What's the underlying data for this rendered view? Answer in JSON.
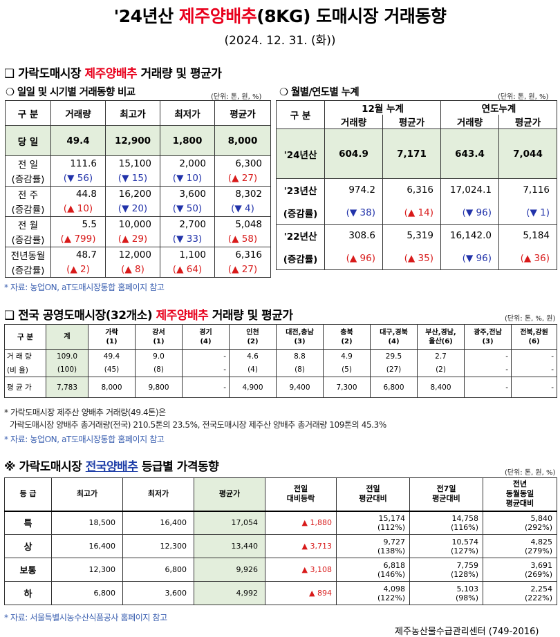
{
  "title": {
    "pre": "'24년산 ",
    "highlight": "제주양배추",
    "post": "(8KG) 도매시장 거래동향"
  },
  "date": "(2024. 12. 31. (화))",
  "sec1": {
    "marker": "❑ ",
    "pre": "가락도매시장 ",
    "highlight": "제주양배추",
    "post": " 거래량 및 평균가"
  },
  "daily": {
    "subtitle": "❍ 일일 및 시기별 거래동향 비교",
    "unit": "(단위: 톤, 원, %)",
    "headers": [
      "구 분",
      "거래량",
      "최고가",
      "최저가",
      "평균가"
    ],
    "today": {
      "label": "당 일",
      "values": [
        "49.4",
        "12,900",
        "1,800",
        "8,000"
      ]
    },
    "rows": [
      {
        "label": "전 일",
        "sub": "(증감률)",
        "values": [
          "111.6",
          "15,100",
          "2,000",
          "6,300"
        ],
        "changes": [
          "(▼ 56)",
          "(▼ 15)",
          "(▼ 10)",
          "(▲ 27)"
        ],
        "dirs": [
          "dn",
          "dn",
          "dn",
          "up"
        ]
      },
      {
        "label": "전 주",
        "sub": "(증감률)",
        "values": [
          "44.8",
          "16,200",
          "3,600",
          "8,302"
        ],
        "changes": [
          "(▲ 10)",
          "(▼ 20)",
          "(▼ 50)",
          "(▼ 4)"
        ],
        "dirs": [
          "up",
          "dn",
          "dn",
          "dn"
        ]
      },
      {
        "label": "전 월",
        "sub": "(증감률)",
        "values": [
          "5.5",
          "10,000",
          "2,700",
          "5,048"
        ],
        "changes": [
          "(▲ 799)",
          "(▲ 29)",
          "(▼ 33)",
          "(▲ 58)"
        ],
        "dirs": [
          "up",
          "up",
          "dn",
          "up"
        ]
      },
      {
        "label": "전년동월",
        "sub": "(증감률)",
        "values": [
          "48.7",
          "12,000",
          "1,100",
          "6,316"
        ],
        "changes": [
          "(▲ 2)",
          "(▲ 8)",
          "(▲ 64)",
          "(▲ 27)"
        ],
        "dirs": [
          "up",
          "up",
          "up",
          "up"
        ]
      }
    ]
  },
  "monthly": {
    "subtitle": "❍ 월별/연도별 누계",
    "unit": "(단위: 톤, 원, %)",
    "header_label": "구 분",
    "group1": "12월 누계",
    "group2": "연도누계",
    "cols": [
      "거래량",
      "평균가",
      "거래량",
      "평균가"
    ],
    "current": {
      "label": "'24년산",
      "values": [
        "604.9",
        "7,171",
        "643.4",
        "7,044"
      ]
    },
    "rows": [
      {
        "label": "'23년산",
        "sub": "(증감률)",
        "values": [
          "974.2",
          "6,316",
          "17,024.1",
          "7,116"
        ],
        "changes": [
          "(▼ 38)",
          "(▲ 14)",
          "(▼ 96)",
          "(▼ 1)"
        ],
        "dirs": [
          "dn",
          "up",
          "dn",
          "dn"
        ]
      },
      {
        "label": "'22년산",
        "sub": "(증감률)",
        "values": [
          "308.6",
          "5,319",
          "16,142.0",
          "5,184"
        ],
        "changes": [
          "(▲ 96)",
          "(▲ 35)",
          "(▼ 96)",
          "(▲ 36)"
        ],
        "dirs": [
          "up",
          "up",
          "dn",
          "up"
        ]
      }
    ]
  },
  "note1": "* 자료: 농업ON, aT도매시장통합 홈페이지 참고",
  "sec2": {
    "marker": "❑ ",
    "pre": "전국 공영도매시장(32개소) ",
    "highlight": "제주양배추",
    "post": " 거래량 및 평균가",
    "unit": "(단위: 톤, %, 원)"
  },
  "national": {
    "header_label": "구 분",
    "cols": [
      {
        "name": "계",
        "sub": ""
      },
      {
        "name": "가락",
        "sub": "(1)"
      },
      {
        "name": "강서",
        "sub": "(1)"
      },
      {
        "name": "경기",
        "sub": "(4)"
      },
      {
        "name": "인천",
        "sub": "(2)"
      },
      {
        "name": "대전,충남",
        "sub": "(3)"
      },
      {
        "name": "충북",
        "sub": "(2)"
      },
      {
        "name": "대구,경북",
        "sub": "(4)"
      },
      {
        "name": "부산,경남,",
        "sub": "울산(6)"
      },
      {
        "name": "광주,전남",
        "sub": "(3)"
      },
      {
        "name": "전북,강원",
        "sub": "(6)"
      }
    ],
    "volume_label": "거 래 량",
    "volume": [
      "109.0",
      "49.4",
      "9.0",
      "-",
      "4.6",
      "8.8",
      "4.9",
      "29.5",
      "2.7",
      "-",
      "-"
    ],
    "ratio_label": "(비 율)",
    "ratio": [
      "(100)",
      "(45)",
      "(8)",
      "-",
      "(4)",
      "(8)",
      "(5)",
      "(27)",
      "(2)",
      "-",
      "-"
    ],
    "price_label": "평 균 가",
    "price": [
      "7,783",
      "8,000",
      "9,800",
      "-",
      "4,900",
      "9,400",
      "7,300",
      "6,800",
      "8,400",
      "-",
      "-"
    ]
  },
  "note2a": "* 가락도매시장 제주산 양배추 거래량(49.4톤)은",
  "note2b": "가락도매시장 양배추 총거래량(전국) 210.5톤의 23.5%, 전국도매시장 제주산 양배추 총거래량 109톤의 45.3%",
  "note2c": "* 자료: 농업ON, aT도매시장통합 홈페이지 참고",
  "sec3": {
    "marker": "※ ",
    "pre": "가락도매시장 ",
    "highlight": "전국양배추",
    "post": " 등급별 가격동향",
    "unit": "(단위: 톤, 원, %)"
  },
  "grade": {
    "headers": [
      "등 급",
      "최고가",
      "최저가",
      "평균가",
      "전일|대비등락",
      "전일|평균대비",
      "전7일|평균대비",
      "전년|동월동일|평균대비"
    ],
    "rows": [
      {
        "grade": "특",
        "max": "18,500",
        "min": "16,400",
        "avg": "17,054",
        "diff": "▲ 1,880",
        "d1": "15,174",
        "d1p": "(112%)",
        "d7": "14,758",
        "d7p": "(116%)",
        "dy": "5,840",
        "dyp": "(292%)"
      },
      {
        "grade": "상",
        "max": "16,400",
        "min": "12,300",
        "avg": "13,440",
        "diff": "▲ 3,713",
        "d1": "9,727",
        "d1p": "(138%)",
        "d7": "10,574",
        "d7p": "(127%)",
        "dy": "4,825",
        "dyp": "(279%)"
      },
      {
        "grade": "보통",
        "max": "12,300",
        "min": "6,800",
        "avg": "9,926",
        "diff": "▲ 3,108",
        "d1": "6,818",
        "d1p": "(146%)",
        "d7": "7,759",
        "d7p": "(128%)",
        "dy": "3,691",
        "dyp": "(269%)"
      },
      {
        "grade": "하",
        "max": "6,800",
        "min": "3,600",
        "avg": "4,992",
        "diff": "▲ 894",
        "d1": "4,098",
        "d1p": "(122%)",
        "d7": "5,103",
        "d7p": "(98%)",
        "dy": "2,254",
        "dyp": "(222%)"
      }
    ]
  },
  "note3": "* 자료: 서울특별시농수산식품공사 홈페이지 참고",
  "footer": "제주농산물수급관리센터 (749-2016)"
}
